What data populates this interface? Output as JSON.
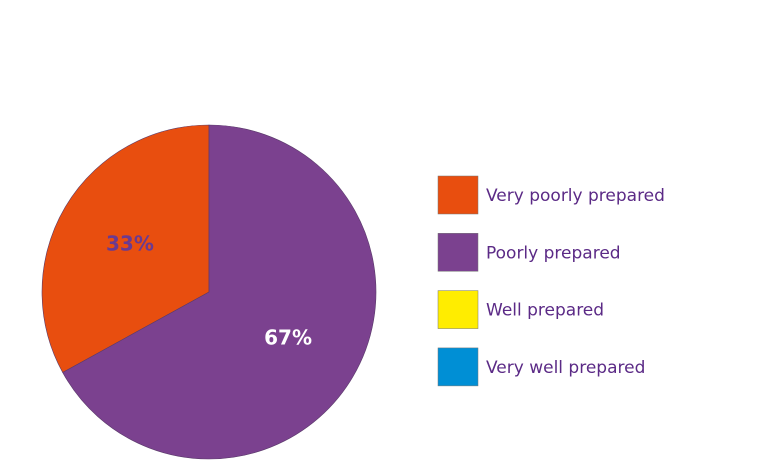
{
  "chart_data": {
    "type": "pie",
    "categories": [
      "Very poorly prepared",
      "Poorly prepared",
      "Well prepared",
      "Very well prepared"
    ],
    "values": [
      33,
      67,
      0,
      0
    ],
    "value_labels": [
      "33%",
      "67%",
      null,
      null
    ],
    "colors": [
      "#e84e0f",
      "#7b418f",
      "#ffed00",
      "#008fd5"
    ],
    "label_colors": [
      "#6a3a91",
      "#ffffff",
      null,
      null
    ]
  }
}
